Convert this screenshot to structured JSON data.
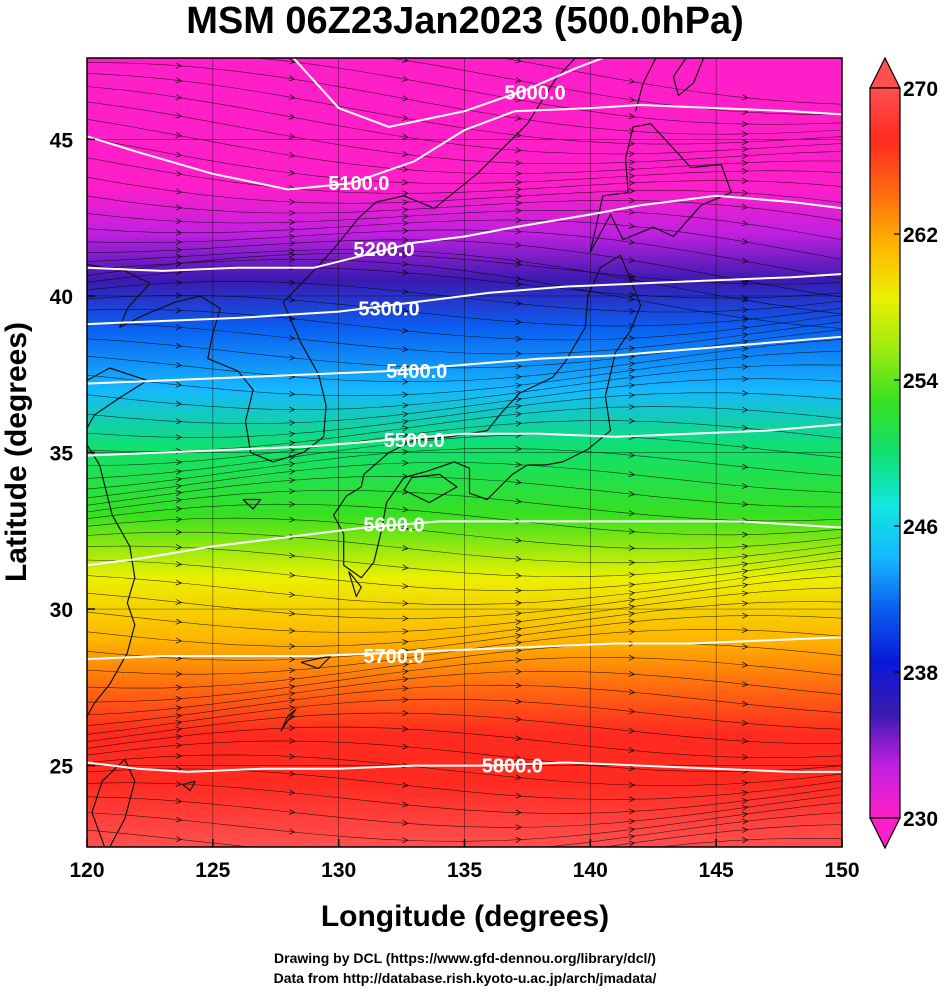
{
  "chart_data": {
    "type": "heatmap",
    "title": "MSM 06Z23Jan2023 (500.0hPa)",
    "xlabel": "Longitude (degrees)",
    "ylabel": "Latitude  (degrees)",
    "xlim": [
      120,
      150
    ],
    "ylim": [
      22.4,
      47.6
    ],
    "x_ticks": [
      120,
      125,
      130,
      135,
      140,
      145,
      150
    ],
    "y_ticks": [
      25,
      30,
      35,
      40,
      45
    ],
    "grid": true,
    "colorbar": {
      "range": [
        230,
        270
      ],
      "ticks": [
        230,
        238,
        246,
        254,
        262,
        270
      ],
      "extend": "both",
      "placement": "right",
      "colors": [
        "#ff1fc8",
        "#c020e0",
        "#3a1ab0",
        "#0a18d8",
        "#0a5ef0",
        "#16b8ff",
        "#10e8e0",
        "#10e070",
        "#38e020",
        "#a0ec10",
        "#ecf000",
        "#ffb400",
        "#ff6a10",
        "#ff2a20",
        "#ff5050"
      ]
    },
    "temperature_field": [
      {
        "lat": 47.6,
        "value": 230
      },
      {
        "lat": 43.5,
        "value": 231
      },
      {
        "lat": 42.0,
        "value": 234
      },
      {
        "lat": 40.5,
        "value": 237
      },
      {
        "lat": 39.0,
        "value": 240
      },
      {
        "lat": 37.0,
        "value": 245
      },
      {
        "lat": 35.2,
        "value": 250
      },
      {
        "lat": 33.0,
        "value": 254
      },
      {
        "lat": 31.0,
        "value": 258
      },
      {
        "lat": 29.0,
        "value": 262
      },
      {
        "lat": 27.5,
        "value": 264
      },
      {
        "lat": 26.0,
        "value": 266
      },
      {
        "lat": 24.5,
        "value": 268
      },
      {
        "lat": 22.4,
        "value": 270
      }
    ],
    "contours": [
      {
        "label": "5000.0",
        "label_lon": 137.8,
        "label_lat": 46.5,
        "points": [
          [
            128.2,
            47.6
          ],
          [
            130.0,
            46.0
          ],
          [
            132.0,
            45.4
          ],
          [
            135.0,
            45.9
          ],
          [
            137.5,
            46.6
          ],
          [
            139.5,
            47.3
          ],
          [
            140.5,
            47.6
          ]
        ]
      },
      {
        "label": "5100.0",
        "label_lon": 130.8,
        "label_lat": 43.6,
        "points": [
          [
            120.0,
            45.1
          ],
          [
            122.0,
            44.6
          ],
          [
            125.0,
            43.9
          ],
          [
            128.0,
            43.4
          ],
          [
            130.5,
            43.6
          ],
          [
            133.0,
            44.3
          ],
          [
            135.0,
            45.3
          ],
          [
            137.0,
            45.9
          ],
          [
            140.0,
            46.0
          ],
          [
            142.0,
            46.1
          ],
          [
            145.0,
            46.0
          ],
          [
            148.0,
            45.9
          ],
          [
            150.0,
            45.8
          ]
        ]
      },
      {
        "label": "5200.0",
        "label_lon": 131.8,
        "label_lat": 41.5,
        "points": [
          [
            120.0,
            40.9
          ],
          [
            123.0,
            40.8
          ],
          [
            126.0,
            40.9
          ],
          [
            129.0,
            40.9
          ],
          [
            131.0,
            41.3
          ],
          [
            133.0,
            41.7
          ],
          [
            135.0,
            41.9
          ],
          [
            137.0,
            42.2
          ],
          [
            140.0,
            42.6
          ],
          [
            142.0,
            42.9
          ],
          [
            145.0,
            43.2
          ],
          [
            148.0,
            43.0
          ],
          [
            150.0,
            42.8
          ]
        ]
      },
      {
        "label": "5300.0",
        "label_lon": 132.0,
        "label_lat": 39.6,
        "points": [
          [
            120.0,
            39.1
          ],
          [
            123.0,
            39.2
          ],
          [
            126.0,
            39.3
          ],
          [
            128.0,
            39.4
          ],
          [
            130.0,
            39.5
          ],
          [
            133.0,
            39.8
          ],
          [
            136.0,
            40.1
          ],
          [
            139.0,
            40.3
          ],
          [
            142.0,
            40.4
          ],
          [
            145.0,
            40.5
          ],
          [
            148.0,
            40.6
          ],
          [
            150.0,
            40.7
          ]
        ]
      },
      {
        "label": "5400.0",
        "label_lon": 133.1,
        "label_lat": 37.6,
        "points": [
          [
            120.0,
            37.2
          ],
          [
            123.0,
            37.3
          ],
          [
            126.0,
            37.4
          ],
          [
            129.0,
            37.5
          ],
          [
            132.0,
            37.6
          ],
          [
            135.0,
            37.8
          ],
          [
            138.0,
            38.0
          ],
          [
            141.0,
            38.1
          ],
          [
            144.0,
            38.3
          ],
          [
            147.0,
            38.5
          ],
          [
            150.0,
            38.7
          ]
        ]
      },
      {
        "label": "5500.0",
        "label_lon": 133.0,
        "label_lat": 35.4,
        "points": [
          [
            120.0,
            34.9
          ],
          [
            123.0,
            35.0
          ],
          [
            126.0,
            35.1
          ],
          [
            129.0,
            35.2
          ],
          [
            132.0,
            35.4
          ],
          [
            135.0,
            35.6
          ],
          [
            138.0,
            35.6
          ],
          [
            141.0,
            35.5
          ],
          [
            144.0,
            35.6
          ],
          [
            147.0,
            35.7
          ],
          [
            150.0,
            35.9
          ]
        ]
      },
      {
        "label": "5600.0",
        "label_lon": 132.2,
        "label_lat": 32.7,
        "points": [
          [
            120.0,
            31.4
          ],
          [
            122.0,
            31.6
          ],
          [
            125.0,
            32.0
          ],
          [
            128.0,
            32.3
          ],
          [
            131.0,
            32.6
          ],
          [
            134.0,
            32.8
          ],
          [
            137.0,
            32.8
          ],
          [
            140.0,
            32.8
          ],
          [
            143.0,
            32.8
          ],
          [
            146.0,
            32.8
          ],
          [
            150.0,
            32.6
          ]
        ]
      },
      {
        "label": "5700.0",
        "label_lon": 132.2,
        "label_lat": 28.5,
        "points": [
          [
            120.0,
            28.4
          ],
          [
            123.0,
            28.5
          ],
          [
            126.0,
            28.5
          ],
          [
            129.0,
            28.5
          ],
          [
            132.0,
            28.6
          ],
          [
            135.0,
            28.7
          ],
          [
            138.0,
            28.8
          ],
          [
            141.0,
            28.9
          ],
          [
            144.0,
            28.9
          ],
          [
            147.0,
            29.0
          ],
          [
            150.0,
            29.1
          ]
        ]
      },
      {
        "label": "5800.0",
        "label_lon": 136.9,
        "label_lat": 25.0,
        "points": [
          [
            120.0,
            25.1
          ],
          [
            122.0,
            24.9
          ],
          [
            124.0,
            24.8
          ],
          [
            127.0,
            24.9
          ],
          [
            130.0,
            24.9
          ],
          [
            133.0,
            25.0
          ],
          [
            136.0,
            25.0
          ],
          [
            139.0,
            25.1
          ],
          [
            142.0,
            25.0
          ],
          [
            145.0,
            24.9
          ],
          [
            148.0,
            24.8
          ],
          [
            150.0,
            24.8
          ]
        ]
      }
    ]
  },
  "credits": [
    "Drawing by DCL (https://www.gfd-dennou.org/library/dcl/)",
    "Data from http://database.rish.kyoto-u.ac.jp/arch/jmadata/"
  ]
}
